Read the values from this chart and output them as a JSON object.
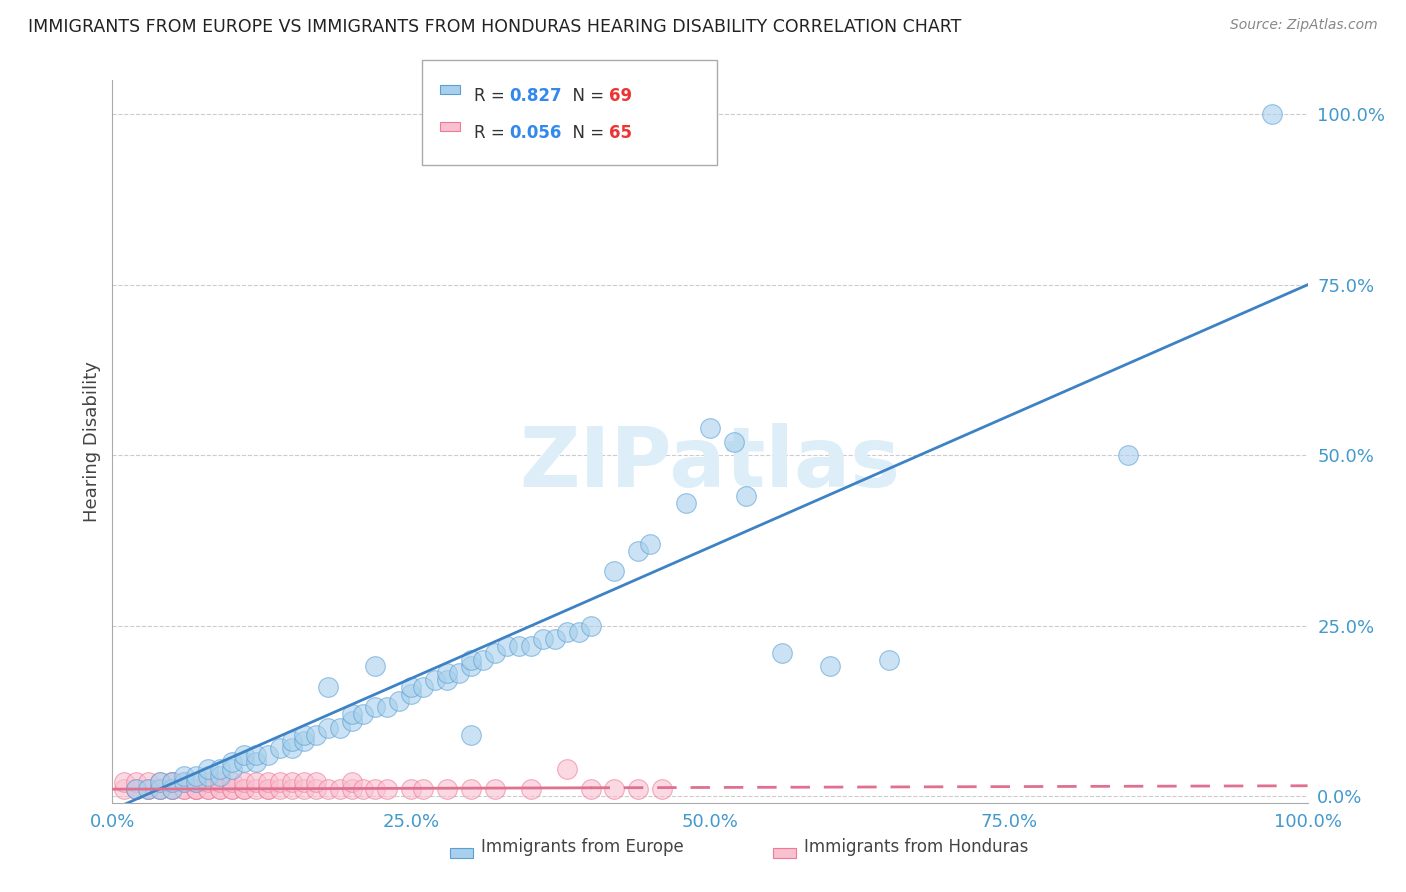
{
  "title": "IMMIGRANTS FROM EUROPE VS IMMIGRANTS FROM HONDURAS HEARING DISABILITY CORRELATION CHART",
  "source": "Source: ZipAtlas.com",
  "ylabel": "Hearing Disability",
  "xlim": [
    0.0,
    1.0
  ],
  "ylim": [
    -0.01,
    1.05
  ],
  "xtick_labels": [
    "0.0%",
    "25.0%",
    "50.0%",
    "75.0%",
    "100.0%"
  ],
  "xtick_vals": [
    0.0,
    0.25,
    0.5,
    0.75,
    1.0
  ],
  "ytick_labels": [
    "0.0%",
    "25.0%",
    "50.0%",
    "75.0%",
    "100.0%"
  ],
  "ytick_vals": [
    0.0,
    0.25,
    0.5,
    0.75,
    1.0
  ],
  "europe_color": "#a8d0ec",
  "europe_color_edge": "#5a9fd4",
  "honduras_color": "#f9c0d0",
  "honduras_color_edge": "#f07898",
  "europe_R": 0.827,
  "europe_N": 69,
  "honduras_R": 0.056,
  "honduras_N": 65,
  "europe_line_color": "#3d82c4",
  "honduras_line_color": "#e07090",
  "background_color": "#ffffff",
  "grid_color": "#cccccc",
  "title_color": "#222222",
  "axis_tick_color": "#4499cc",
  "legend_R_color": "#3388ee",
  "legend_N_color": "#ee3333",
  "watermark_color": "#ddeef8",
  "eu_scatter_x": [
    0.02,
    0.03,
    0.04,
    0.04,
    0.05,
    0.05,
    0.06,
    0.06,
    0.07,
    0.07,
    0.08,
    0.08,
    0.09,
    0.09,
    0.1,
    0.1,
    0.11,
    0.11,
    0.12,
    0.12,
    0.13,
    0.14,
    0.15,
    0.15,
    0.16,
    0.16,
    0.17,
    0.18,
    0.19,
    0.2,
    0.2,
    0.21,
    0.22,
    0.23,
    0.24,
    0.25,
    0.25,
    0.26,
    0.27,
    0.28,
    0.28,
    0.29,
    0.3,
    0.3,
    0.31,
    0.32,
    0.33,
    0.34,
    0.35,
    0.36,
    0.37,
    0.38,
    0.39,
    0.4,
    0.42,
    0.44,
    0.45,
    0.48,
    0.5,
    0.52,
    0.53,
    0.56,
    0.6,
    0.65,
    0.85,
    0.97,
    0.3,
    0.22,
    0.18
  ],
  "eu_scatter_y": [
    0.01,
    0.01,
    0.01,
    0.02,
    0.01,
    0.02,
    0.02,
    0.03,
    0.02,
    0.03,
    0.03,
    0.04,
    0.03,
    0.04,
    0.04,
    0.05,
    0.05,
    0.06,
    0.05,
    0.06,
    0.06,
    0.07,
    0.07,
    0.08,
    0.08,
    0.09,
    0.09,
    0.1,
    0.1,
    0.11,
    0.12,
    0.12,
    0.13,
    0.13,
    0.14,
    0.15,
    0.16,
    0.16,
    0.17,
    0.17,
    0.18,
    0.18,
    0.19,
    0.2,
    0.2,
    0.21,
    0.22,
    0.22,
    0.22,
    0.23,
    0.23,
    0.24,
    0.24,
    0.25,
    0.33,
    0.36,
    0.37,
    0.43,
    0.54,
    0.52,
    0.44,
    0.21,
    0.19,
    0.2,
    0.5,
    1.0,
    0.09,
    0.19,
    0.16
  ],
  "ho_scatter_x": [
    0.01,
    0.01,
    0.02,
    0.02,
    0.02,
    0.03,
    0.03,
    0.03,
    0.04,
    0.04,
    0.04,
    0.05,
    0.05,
    0.05,
    0.05,
    0.06,
    0.06,
    0.06,
    0.07,
    0.07,
    0.07,
    0.07,
    0.08,
    0.08,
    0.08,
    0.09,
    0.09,
    0.09,
    0.1,
    0.1,
    0.1,
    0.11,
    0.11,
    0.11,
    0.12,
    0.12,
    0.13,
    0.13,
    0.13,
    0.14,
    0.14,
    0.15,
    0.15,
    0.16,
    0.16,
    0.17,
    0.17,
    0.18,
    0.19,
    0.2,
    0.2,
    0.21,
    0.22,
    0.23,
    0.25,
    0.26,
    0.28,
    0.3,
    0.32,
    0.35,
    0.38,
    0.4,
    0.42,
    0.44,
    0.46
  ],
  "ho_scatter_y": [
    0.01,
    0.02,
    0.01,
    0.01,
    0.02,
    0.01,
    0.01,
    0.02,
    0.01,
    0.01,
    0.02,
    0.01,
    0.01,
    0.02,
    0.02,
    0.01,
    0.01,
    0.02,
    0.01,
    0.01,
    0.01,
    0.02,
    0.01,
    0.01,
    0.02,
    0.01,
    0.01,
    0.02,
    0.01,
    0.01,
    0.02,
    0.01,
    0.01,
    0.02,
    0.01,
    0.02,
    0.01,
    0.01,
    0.02,
    0.01,
    0.02,
    0.01,
    0.02,
    0.01,
    0.02,
    0.01,
    0.02,
    0.01,
    0.01,
    0.01,
    0.02,
    0.01,
    0.01,
    0.01,
    0.01,
    0.01,
    0.01,
    0.01,
    0.01,
    0.01,
    0.04,
    0.01,
    0.01,
    0.01,
    0.01
  ],
  "eu_line": {
    "x0": 0.0,
    "y0": -0.02,
    "x1": 1.0,
    "y1": 0.75
  },
  "ho_line_solid": {
    "x0": 0.0,
    "y0": 0.01,
    "x1": 0.4,
    "y1": 0.012
  },
  "ho_line_dashed": {
    "x0": 0.4,
    "y0": 0.012,
    "x1": 1.0,
    "y1": 0.015
  }
}
